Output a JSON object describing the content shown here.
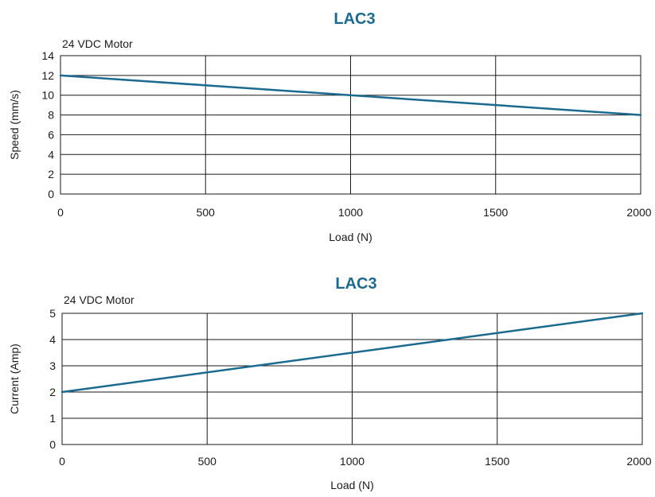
{
  "chart_data": [
    {
      "type": "line",
      "title": "LAC3",
      "subtitle": "24 VDC Motor",
      "xlabel": "Load (N)",
      "ylabel": "Speed (mm/s)",
      "xlim": [
        0,
        2000
      ],
      "ylim": [
        0,
        14
      ],
      "x_ticks": [
        0,
        500,
        1000,
        1500,
        2000
      ],
      "x_tick_labels": [
        "0",
        "500",
        "1000",
        "1500",
        "2000"
      ],
      "y_ticks": [
        0,
        2,
        4,
        6,
        8,
        10,
        12,
        14
      ],
      "y_tick_labels": [
        "0",
        "2",
        "4",
        "6",
        "8",
        "10",
        "12",
        "14"
      ],
      "grid": true,
      "series": [
        {
          "x": [
            0,
            1000,
            2000
          ],
          "y": [
            12,
            10,
            8
          ],
          "color": "#1b6a8f"
        }
      ]
    },
    {
      "type": "line",
      "title": "LAC3",
      "subtitle": "24 VDC Motor",
      "xlabel": "Load (N)",
      "ylabel": "Current (Amp)",
      "xlim": [
        0,
        2000
      ],
      "ylim": [
        0,
        5
      ],
      "x_ticks": [
        0,
        500,
        1000,
        1500,
        2000
      ],
      "x_tick_labels": [
        "0",
        "500",
        "1000",
        "1500",
        "2000"
      ],
      "y_ticks": [
        0,
        1,
        2,
        3,
        4,
        5
      ],
      "y_tick_labels": [
        "0",
        "1",
        "2",
        "3",
        "4",
        "5"
      ],
      "grid": true,
      "series": [
        {
          "x": [
            0,
            2000
          ],
          "y": [
            2,
            5
          ],
          "color": "#1b6a8f"
        }
      ]
    }
  ]
}
